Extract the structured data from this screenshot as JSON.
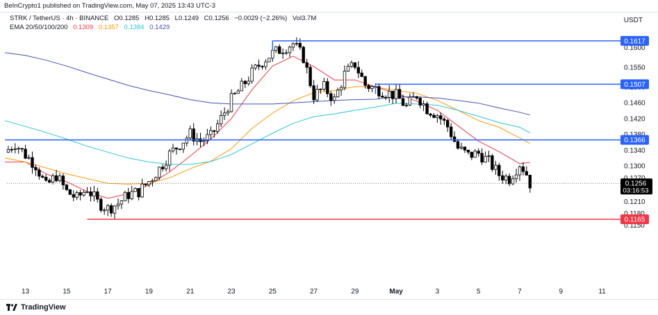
{
  "header": {
    "published_text": "BeInCrypto1 published on TradingView.com, May 07, 2025 13:43 UTC-3"
  },
  "legend": {
    "symbol_line": "STRK / TetherUS · 4h · BINANCE",
    "ohlc": {
      "open": "O0.1285",
      "high": "H0.1285",
      "low": "L0.1249",
      "close": "C0.1256",
      "change": "−0.0029 (−2.26%)",
      "volume": "Vol3.7M"
    },
    "ema_label": "EMA 20/50/100/200",
    "ema_values": [
      "0.1309",
      "0.1357",
      "0.1384",
      "0.1429"
    ]
  },
  "currency_label": "USDT",
  "footer": {
    "brand": "TradingView"
  },
  "colors": {
    "up_candle": "#ffffff",
    "down_candle": "#000000",
    "candle_border": "#000000",
    "ema20": "#f23645",
    "ema50": "#ff9800",
    "ema100": "#26c6da",
    "ema200": "#3f51b5",
    "level_line": "#2962ff",
    "support_line": "#f23645",
    "price_badge": "#000000"
  },
  "chart_data": {
    "type": "candlestick",
    "title": "STRK / TetherUS · 4h · BINANCE",
    "ylabel": "USDT",
    "ylim": [
      0.1132,
      0.1672
    ],
    "x_ticks": [
      "13",
      "15",
      "17",
      "19",
      "21",
      "23",
      "25",
      "27",
      "29",
      "May",
      "3",
      "5",
      "7",
      "9",
      "11"
    ],
    "y_ticks": [
      "0.1600",
      "0.1550",
      "0.1500",
      "0.1460",
      "0.1420",
      "0.1380",
      "0.1340",
      "0.1300",
      "0.1270",
      "0.1210",
      "0.1180",
      "0.1150"
    ],
    "y_tick_values": [
      0.16,
      0.155,
      0.15,
      0.146,
      0.142,
      0.138,
      0.134,
      0.13,
      0.127,
      0.121,
      0.118,
      0.115
    ],
    "horizontal_levels": [
      {
        "label": "0.1617",
        "value": 0.1617,
        "start_date": "Apr 25",
        "color": "blue"
      },
      {
        "label": "0.1507",
        "value": 0.1507,
        "start_date": "Apr 30",
        "color": "blue"
      },
      {
        "label": "0.1366",
        "value": 0.1366,
        "start_date": "Apr 12",
        "color": "blue"
      },
      {
        "label": "0.1165",
        "value": 0.1165,
        "start_date": "Apr 16",
        "color": "red"
      }
    ],
    "current_price": {
      "label": "0.1256",
      "value": 0.1256,
      "countdown": "03:16:53"
    },
    "ema_series": [
      {
        "name": "EMA 20",
        "color": "red",
        "points": [
          [
            "Apr 12",
            0.131
          ],
          [
            "Apr 13",
            0.131
          ],
          [
            "Apr 14",
            0.128
          ],
          [
            "Apr 15",
            0.126
          ],
          [
            "Apr 16",
            0.1235
          ],
          [
            "Apr 17",
            0.1218
          ],
          [
            "Apr 18",
            0.123
          ],
          [
            "Apr 19",
            0.1252
          ],
          [
            "Apr 20",
            0.1285
          ],
          [
            "Apr 21",
            0.1325
          ],
          [
            "Apr 22",
            0.1368
          ],
          [
            "Apr 23",
            0.142
          ],
          [
            "Apr 24",
            0.1493
          ],
          [
            "Apr 25",
            0.1553
          ],
          [
            "Apr 26",
            0.1578
          ],
          [
            "Apr 27",
            0.1552
          ],
          [
            "Apr 28",
            0.1518
          ],
          [
            "Apr 29",
            0.1518
          ],
          [
            "Apr 30",
            0.15
          ],
          [
            "May 1",
            0.1484
          ],
          [
            "May 2",
            0.1464
          ],
          [
            "May 3",
            0.1441
          ],
          [
            "May 4",
            0.1402
          ],
          [
            "May 5",
            0.1363
          ],
          [
            "May 6",
            0.1336
          ],
          [
            "May 7",
            0.1306
          ],
          [
            "May 7.5",
            0.1309
          ]
        ]
      },
      {
        "name": "EMA 50",
        "color": "orange",
        "points": [
          [
            "Apr 12",
            0.132
          ],
          [
            "Apr 13",
            0.131
          ],
          [
            "Apr 14",
            0.1295
          ],
          [
            "Apr 15",
            0.128
          ],
          [
            "Apr 16",
            0.1268
          ],
          [
            "Apr 17",
            0.1256
          ],
          [
            "Apr 18",
            0.1254
          ],
          [
            "Apr 19",
            0.1256
          ],
          [
            "Apr 20",
            0.127
          ],
          [
            "Apr 21",
            0.1293
          ],
          [
            "Apr 22",
            0.1312
          ],
          [
            "Apr 23",
            0.1344
          ],
          [
            "Apr 24",
            0.1395
          ],
          [
            "Apr 25",
            0.1434
          ],
          [
            "Apr 26",
            0.1465
          ],
          [
            "Apr 27",
            0.1486
          ],
          [
            "Apr 28",
            0.1491
          ],
          [
            "Apr 29",
            0.1501
          ],
          [
            "Apr 30",
            0.15
          ],
          [
            "May 1",
            0.1491
          ],
          [
            "May 2",
            0.1484
          ],
          [
            "May 3",
            0.1466
          ],
          [
            "May 4",
            0.1441
          ],
          [
            "May 5",
            0.1415
          ],
          [
            "May 6",
            0.1398
          ],
          [
            "May 7",
            0.1371
          ],
          [
            "May 7.5",
            0.1357
          ]
        ]
      },
      {
        "name": "EMA 100",
        "color": "cyan",
        "points": [
          [
            "Apr 12",
            0.1415
          ],
          [
            "Apr 13",
            0.14
          ],
          [
            "Apr 14",
            0.1385
          ],
          [
            "Apr 15",
            0.1368
          ],
          [
            "Apr 16",
            0.135
          ],
          [
            "Apr 17",
            0.1335
          ],
          [
            "Apr 18",
            0.132
          ],
          [
            "Apr 19",
            0.131
          ],
          [
            "Apr 20",
            0.1304
          ],
          [
            "Apr 21",
            0.1304
          ],
          [
            "Apr 22",
            0.1311
          ],
          [
            "Apr 23",
            0.1329
          ],
          [
            "Apr 24",
            0.1356
          ],
          [
            "Apr 25",
            0.1383
          ],
          [
            "Apr 26",
            0.1408
          ],
          [
            "Apr 27",
            0.1425
          ],
          [
            "Apr 28",
            0.1432
          ],
          [
            "Apr 29",
            0.1441
          ],
          [
            "Apr 30",
            0.1449
          ],
          [
            "May 1",
            0.1459
          ],
          [
            "May 2",
            0.1457
          ],
          [
            "May 3",
            0.1454
          ],
          [
            "May 4",
            0.1441
          ],
          [
            "May 5",
            0.1426
          ],
          [
            "May 6",
            0.141
          ],
          [
            "May 7",
            0.1398
          ],
          [
            "May 7.5",
            0.1384
          ]
        ]
      },
      {
        "name": "EMA 200",
        "color": "blue",
        "points": [
          [
            "Apr 12",
            0.1587
          ],
          [
            "Apr 13",
            0.158
          ],
          [
            "Apr 14",
            0.1568
          ],
          [
            "Apr 15",
            0.1553
          ],
          [
            "Apr 16",
            0.1536
          ],
          [
            "Apr 17",
            0.152
          ],
          [
            "Apr 18",
            0.1504
          ],
          [
            "Apr 19",
            0.1491
          ],
          [
            "Apr 20",
            0.148
          ],
          [
            "Apr 21",
            0.1468
          ],
          [
            "Apr 22",
            0.146
          ],
          [
            "Apr 23",
            0.1457
          ],
          [
            "Apr 24",
            0.1457
          ],
          [
            "Apr 25",
            0.1457
          ],
          [
            "Apr 26",
            0.146
          ],
          [
            "Apr 27",
            0.1463
          ],
          [
            "Apr 28",
            0.1466
          ],
          [
            "Apr 29",
            0.1468
          ],
          [
            "Apr 30",
            0.1469
          ],
          [
            "May 1",
            0.1475
          ],
          [
            "May 2",
            0.1475
          ],
          [
            "May 3",
            0.1472
          ],
          [
            "May 4",
            0.1466
          ],
          [
            "May 5",
            0.1459
          ],
          [
            "May 6",
            0.1447
          ],
          [
            "May 7",
            0.1436
          ],
          [
            "May 7.5",
            0.1429
          ]
        ]
      }
    ],
    "close_path": [
      [
        "Apr 12",
        0.1335
      ],
      [
        "Apr 12.5",
        0.1357
      ],
      [
        "Apr 13",
        0.1328
      ],
      [
        "Apr 13.5",
        0.1302
      ],
      [
        "Apr 14",
        0.1248
      ],
      [
        "Apr 14.5",
        0.1276
      ],
      [
        "Apr 15",
        0.1235
      ],
      [
        "Apr 15.5",
        0.1218
      ],
      [
        "Apr 16",
        0.1243
      ],
      [
        "Apr 16.5",
        0.1208
      ],
      [
        "Apr 17",
        0.1192
      ],
      [
        "Apr 17.5",
        0.1205
      ],
      [
        "Apr 18",
        0.1228
      ],
      [
        "Apr 18.5",
        0.1235
      ],
      [
        "Apr 19",
        0.1261
      ],
      [
        "Apr 19.5",
        0.1293
      ],
      [
        "Apr 20",
        0.133
      ],
      [
        "Apr 20.5",
        0.1356
      ],
      [
        "Apr 21",
        0.1381
      ],
      [
        "Apr 21.5",
        0.1363
      ],
      [
        "Apr 22",
        0.1374
      ],
      [
        "Apr 22.5",
        0.142
      ],
      [
        "Apr 23",
        0.1468
      ],
      [
        "Apr 23.5",
        0.15
      ],
      [
        "Apr 24",
        0.1535
      ],
      [
        "Apr 24.5",
        0.1565
      ],
      [
        "Apr 25",
        0.1585
      ],
      [
        "Apr 25.5",
        0.1598
      ],
      [
        "Apr 26",
        0.161
      ],
      [
        "Apr 26.5",
        0.1575
      ],
      [
        "Apr 27",
        0.1478
      ],
      [
        "Apr 27.5",
        0.1499
      ],
      [
        "Apr 28",
        0.1467
      ],
      [
        "Apr 28.5",
        0.1532
      ],
      [
        "Apr 29",
        0.1558
      ],
      [
        "Apr 29.5",
        0.1505
      ],
      [
        "May 1",
        0.1478
      ],
      [
        "May 1.5",
        0.145
      ],
      [
        "May 2",
        0.148
      ],
      [
        "May 2.5",
        0.1445
      ],
      [
        "May 3",
        0.143
      ],
      [
        "May 3.5",
        0.14
      ],
      [
        "May 4",
        0.1345
      ],
      [
        "May 4.5",
        0.1327
      ],
      [
        "May 5",
        0.1332
      ],
      [
        "May 5.5",
        0.1311
      ],
      [
        "May 6",
        0.1278
      ],
      [
        "May 6.5",
        0.1268
      ],
      [
        "May 7",
        0.1306
      ],
      [
        "May 7.3",
        0.1285
      ],
      [
        "May 7.5",
        0.1256
      ]
    ]
  }
}
